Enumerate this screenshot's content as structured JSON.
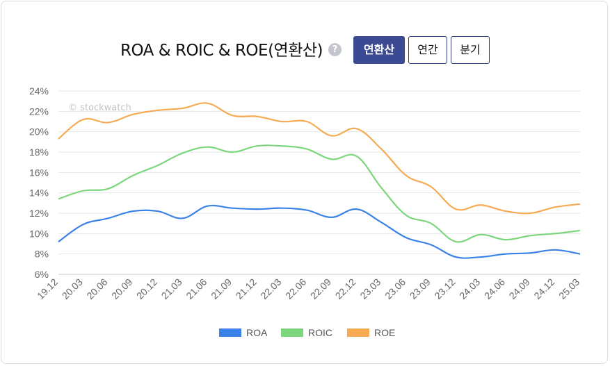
{
  "header": {
    "title": "ROA & ROIC & ROE(연환산)",
    "help_glyph": "?",
    "buttons": [
      {
        "label": "연환산",
        "active": true
      },
      {
        "label": "연간",
        "active": false
      },
      {
        "label": "분기",
        "active": false
      }
    ]
  },
  "watermark": "© stockwatch",
  "chart_data": {
    "type": "line",
    "title": "ROA & ROIC & ROE(연환산)",
    "x": [
      "19.12",
      "20.03",
      "20.06",
      "20.09",
      "20.12",
      "21.03",
      "21.06",
      "21.09",
      "21.12",
      "22.03",
      "22.06",
      "22.09",
      "22.12",
      "23.03",
      "23.06",
      "23.09",
      "23.12",
      "24.03",
      "24.06",
      "24.09",
      "24.12",
      "25.03"
    ],
    "ylim": [
      6,
      24
    ],
    "yticks": [
      6,
      8,
      10,
      12,
      14,
      16,
      18,
      20,
      22,
      24
    ],
    "ytick_labels": [
      "6%",
      "8%",
      "10%",
      "12%",
      "14%",
      "16%",
      "18%",
      "20%",
      "22%",
      "24%"
    ],
    "grid": true,
    "legend_position": "bottom",
    "series": [
      {
        "name": "ROA",
        "color": "#3b82e8",
        "values": [
          9.2,
          10.9,
          11.5,
          12.2,
          12.2,
          11.5,
          12.7,
          12.5,
          12.4,
          12.5,
          12.3,
          11.6,
          12.4,
          11.1,
          9.6,
          8.9,
          7.7,
          7.7,
          8.0,
          8.1,
          8.4,
          8.0
        ]
      },
      {
        "name": "ROIC",
        "color": "#7cd67c",
        "values": [
          13.4,
          14.2,
          14.4,
          15.7,
          16.7,
          17.9,
          18.5,
          18.0,
          18.6,
          18.6,
          18.3,
          17.3,
          17.6,
          14.5,
          11.8,
          11.0,
          9.2,
          9.9,
          9.4,
          9.8,
          10.0,
          10.3
        ]
      },
      {
        "name": "ROE",
        "color": "#f6aa52",
        "values": [
          19.3,
          21.2,
          20.9,
          21.7,
          22.1,
          22.3,
          22.8,
          21.6,
          21.5,
          21.0,
          21.0,
          19.6,
          20.3,
          18.3,
          15.7,
          14.6,
          12.4,
          12.8,
          12.2,
          12.0,
          12.6,
          12.9
        ]
      }
    ]
  }
}
